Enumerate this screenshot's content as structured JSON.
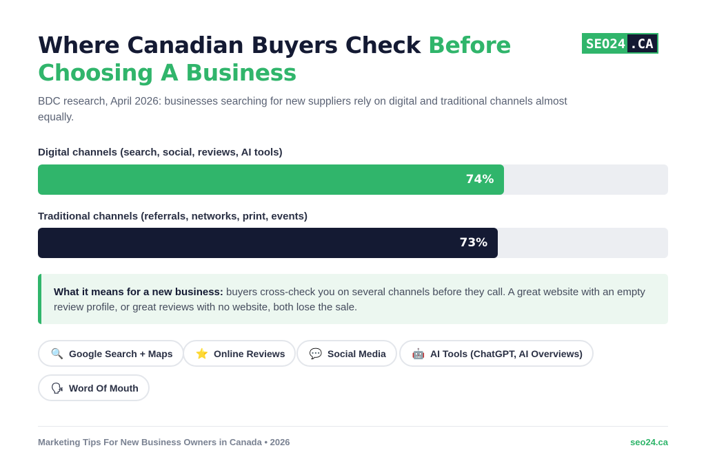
{
  "header": {
    "title_main": "Where Canadian Buyers Check ",
    "title_accent": "Before Choosing A Business",
    "subtitle": "BDC research, April 2026: businesses searching for new suppliers rely on digital and traditional channels almost equally.",
    "logo_part1": "SEO24",
    "logo_part2": ".CA"
  },
  "chart_data": {
    "type": "bar",
    "orientation": "horizontal",
    "categories": [
      "Digital channels (search, social, reviews, AI tools)",
      "Traditional channels (referrals, networks, print, events)"
    ],
    "values": [
      74,
      73
    ],
    "value_labels": [
      "74%",
      "73%"
    ],
    "ylim": [
      0,
      100
    ],
    "colors": [
      "#30b56b",
      "#141a33"
    ],
    "track_color": "#eceef2"
  },
  "callout": {
    "bold": "What it means for a new business:",
    "text": " buyers cross-check you on several channels before they call. A great website with an empty review profile, or great reviews with no website, both lose the sale."
  },
  "chips": [
    {
      "icon": "search-icon",
      "glyph": "🔍",
      "label": "Google Search + Maps"
    },
    {
      "icon": "star-icon",
      "glyph": "⭐",
      "label": "Online Reviews"
    },
    {
      "icon": "speech-bubble-icon",
      "glyph": "💬",
      "label": "Social Media"
    },
    {
      "icon": "robot-icon",
      "glyph": "🤖",
      "label": "AI Tools (ChatGPT, AI Overviews)"
    },
    {
      "icon": "speaking-head-icon",
      "glyph": "🗣",
      "label": "Word Of Mouth"
    }
  ],
  "footer": {
    "left": "Marketing Tips For New Business Owners in Canada • 2026",
    "right": "seo24.ca"
  },
  "colors": {
    "accent": "#30b56b",
    "dark": "#141a33"
  }
}
